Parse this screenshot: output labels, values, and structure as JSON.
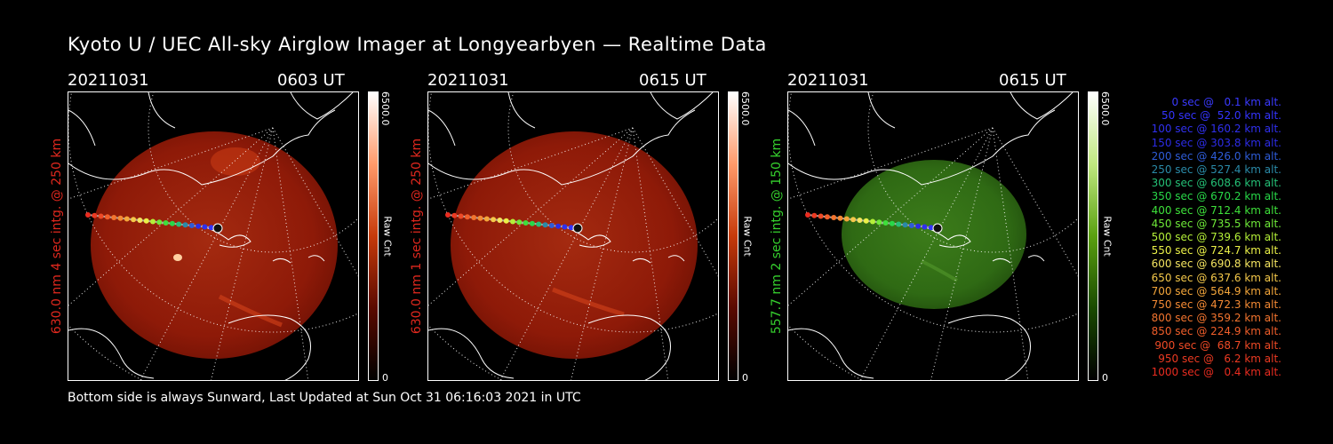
{
  "title": "Kyoto U / UEC All-sky Airglow Imager at Longyearbyen — Realtime Data",
  "panels": [
    {
      "date": "20211031",
      "time": "0603 UT",
      "label": "630.0 nm 4 sec intg. @ 250 km",
      "color": "#e0281e",
      "cmax": "6500.0",
      "cmin": "0",
      "cname": "Raw Cnt"
    },
    {
      "date": "20211031",
      "time": "0615 UT",
      "label": "630.0 nm 1 sec intg. @ 250 km",
      "color": "#e0281e",
      "cmax": "6500.0",
      "cmin": "0",
      "cname": "Raw Cnt"
    },
    {
      "date": "20211031",
      "time": "0615 UT",
      "label": "557.7 nm 2 sec intg. @ 150 km",
      "color": "#36d12e",
      "cmax": "6500.0",
      "cmin": "0",
      "cname": "Raw Cnt"
    }
  ],
  "legend": [
    {
      "text": "0 sec @   0.1 km alt.",
      "color": "#3a3aff"
    },
    {
      "text": "50 sec @  52.0 km alt.",
      "color": "#3434ff"
    },
    {
      "text": "100 sec @ 160.2 km alt.",
      "color": "#3030ee"
    },
    {
      "text": "150 sec @ 303.8 km alt.",
      "color": "#2c2ce6"
    },
    {
      "text": "200 sec @ 426.0 km alt.",
      "color": "#2e5cd8"
    },
    {
      "text": "250 sec @ 527.4 km alt.",
      "color": "#2a8aa8"
    },
    {
      "text": "300 sec @ 608.6 km alt.",
      "color": "#24c076"
    },
    {
      "text": "350 sec @ 670.2 km alt.",
      "color": "#28d848"
    },
    {
      "text": "400 sec @ 712.4 km alt.",
      "color": "#3ee03a"
    },
    {
      "text": "450 sec @ 735.5 km alt.",
      "color": "#6ee838"
    },
    {
      "text": "500 sec @ 739.6 km alt.",
      "color": "#b4f038"
    },
    {
      "text": "550 sec @ 724.7 km alt.",
      "color": "#eaf048"
    },
    {
      "text": "600 sec @ 690.8 km alt.",
      "color": "#f4e460"
    },
    {
      "text": "650 sec @ 637.6 km alt.",
      "color": "#f4c84a"
    },
    {
      "text": "700 sec @ 564.9 km alt.",
      "color": "#f4a63a"
    },
    {
      "text": "750 sec @ 472.3 km alt.",
      "color": "#f48a34"
    },
    {
      "text": "800 sec @ 359.2 km alt.",
      "color": "#f2742e"
    },
    {
      "text": "850 sec @ 224.9 km alt.",
      "color": "#f05e2a"
    },
    {
      "text": "900 sec @  68.7 km alt.",
      "color": "#ee4a26"
    },
    {
      "text": "950 sec @   6.2 km alt.",
      "color": "#ec3a22"
    },
    {
      "text": "1000 sec @   0.4 km alt.",
      "color": "#ea2c20"
    }
  ],
  "footer": "Bottom side is always Sunward, Last Updated at Sun Oct 31 06:16:03 2021 in UTC",
  "colors": {
    "red_glow": "#8e1a08",
    "green_glow": "#2f6a14",
    "track_end": "#111111"
  }
}
